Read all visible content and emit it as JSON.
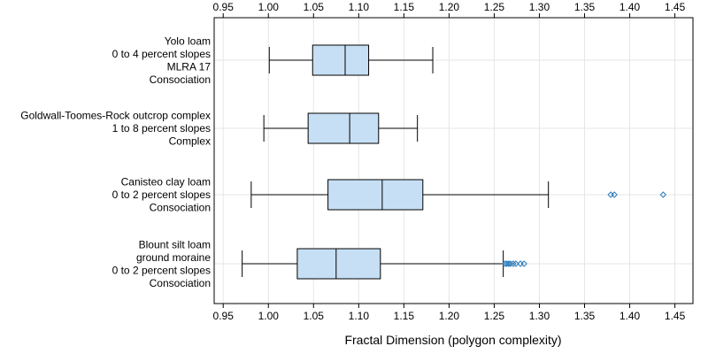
{
  "chart_data": {
    "type": "boxplot",
    "orientation": "horizontal",
    "xlabel": "Fractal Dimension (polygon complexity)",
    "xlim": [
      0.94,
      1.47
    ],
    "xticks": [
      0.95,
      1.0,
      1.05,
      1.1,
      1.15,
      1.2,
      1.25,
      1.3,
      1.35,
      1.4,
      1.45
    ],
    "tick_labels": [
      "0.95",
      "1.00",
      "1.05",
      "1.10",
      "1.15",
      "1.20",
      "1.25",
      "1.30",
      "1.35",
      "1.40",
      "1.45"
    ],
    "ticks_on": [
      "top",
      "bottom"
    ],
    "grid": true,
    "box_fill": "#c6dff5",
    "outlier_color": "#2b7bba",
    "categories": [
      {
        "label_lines": [
          "Yolo loam",
          "0 to 4 percent slopes",
          "MLRA 17",
          "Consociation"
        ],
        "whisker_low": 1.001,
        "q1": 1.049,
        "median": 1.085,
        "q3": 1.111,
        "whisker_high": 1.182,
        "outliers": []
      },
      {
        "label_lines": [
          "Goldwall-Toomes-Rock outcrop complex",
          "1 to 8 percent slopes",
          "Complex"
        ],
        "whisker_low": 0.995,
        "q1": 1.044,
        "median": 1.09,
        "q3": 1.122,
        "whisker_high": 1.165,
        "outliers": []
      },
      {
        "label_lines": [
          "Canisteo clay loam",
          "0 to 2 percent slopes",
          "Consociation"
        ],
        "whisker_low": 0.981,
        "q1": 1.066,
        "median": 1.126,
        "q3": 1.171,
        "whisker_high": 1.31,
        "outliers": [
          1.379,
          1.383,
          1.437
        ]
      },
      {
        "label_lines": [
          "Blount silt loam",
          "ground moraine",
          "0 to 2 percent slopes",
          "Consociation"
        ],
        "whisker_low": 0.971,
        "q1": 1.032,
        "median": 1.075,
        "q3": 1.124,
        "whisker_high": 1.26,
        "outliers": [
          1.262,
          1.264,
          1.266,
          1.268,
          1.271,
          1.274,
          1.279,
          1.283
        ]
      }
    ]
  }
}
